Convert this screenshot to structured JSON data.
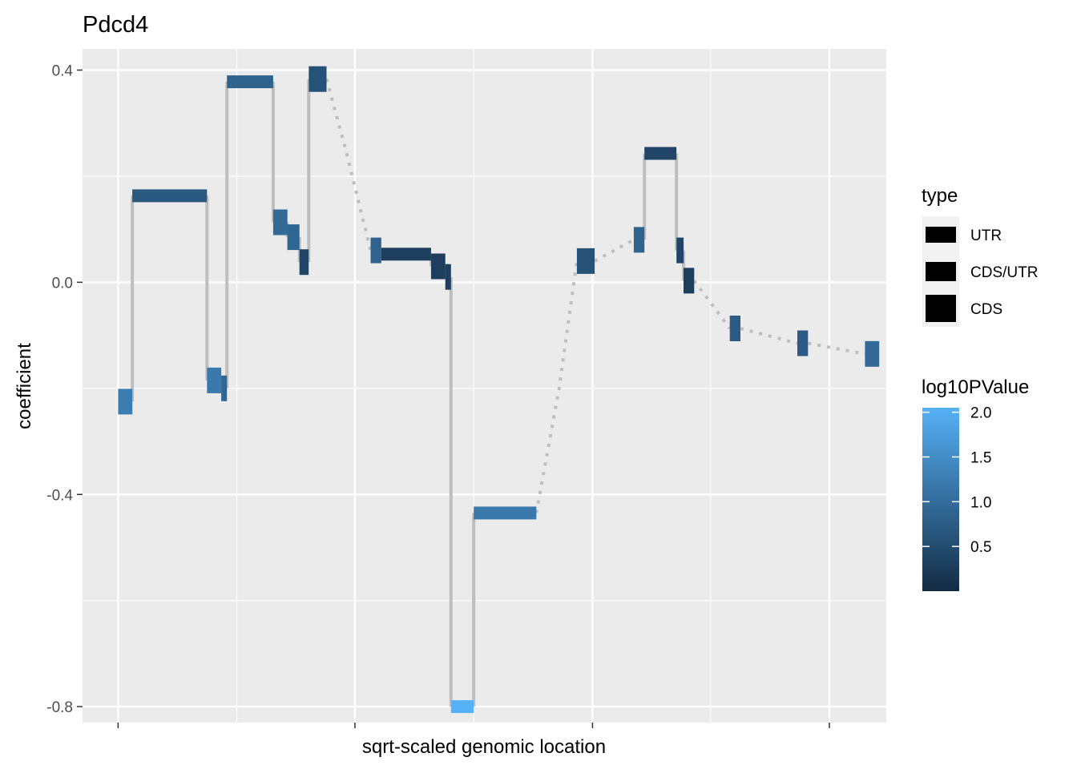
{
  "chart_data": {
    "type": "segment",
    "title": "Pdcd4",
    "xlabel": "sqrt-scaled genomic location",
    "ylabel": "coefficient",
    "ylim": [
      -0.83,
      0.44
    ],
    "xlim": [
      -0.5,
      10.8
    ],
    "yticks": [
      {
        "value": 0.4,
        "label": "0.4"
      },
      {
        "value": 0.0,
        "label": "0.0"
      },
      {
        "value": -0.4,
        "label": "-0.4"
      },
      {
        "value": -0.8,
        "label": "-0.8"
      }
    ],
    "xtick_positions": [
      0,
      1.67,
      3.33,
      5,
      6.67,
      8.33,
      10
    ],
    "segments": [
      {
        "x0": 0.0,
        "x1": 0.2,
        "y": -0.225,
        "p": 1.25,
        "type": "CDS"
      },
      {
        "x0": 0.2,
        "x1": 1.25,
        "y": 0.163,
        "p": 0.7,
        "type": "UTR"
      },
      {
        "x0": 1.25,
        "x1": 1.45,
        "y": -0.185,
        "p": 1.2,
        "type": "CDS"
      },
      {
        "x0": 1.45,
        "x1": 1.53,
        "y": -0.2,
        "p": 0.9,
        "type": "CDS"
      },
      {
        "x0": 1.53,
        "x1": 2.18,
        "y": 0.378,
        "p": 0.85,
        "type": "UTR"
      },
      {
        "x0": 2.18,
        "x1": 2.38,
        "y": 0.113,
        "p": 0.95,
        "type": "CDS"
      },
      {
        "x0": 2.38,
        "x1": 2.55,
        "y": 0.085,
        "p": 0.9,
        "type": "CDS"
      },
      {
        "x0": 2.55,
        "x1": 2.68,
        "y": 0.038,
        "p": 0.4,
        "type": "CDS"
      },
      {
        "x0": 2.68,
        "x1": 2.93,
        "y": 0.383,
        "p": 0.6,
        "type": "CDS"
      },
      {
        "x0": 3.55,
        "x1": 3.7,
        "y": 0.06,
        "p": 0.85,
        "type": "CDS"
      },
      {
        "x0": 3.7,
        "x1": 4.4,
        "y": 0.053,
        "p": 0.3,
        "type": "UTR"
      },
      {
        "x0": 4.4,
        "x1": 4.6,
        "y": 0.03,
        "p": 0.3,
        "type": "CDS"
      },
      {
        "x0": 4.6,
        "x1": 4.68,
        "y": 0.01,
        "p": 0.3,
        "type": "CDS"
      },
      {
        "x0": 4.68,
        "x1": 5.0,
        "y": -0.8,
        "p": 2.05,
        "type": "UTR"
      },
      {
        "x0": 5.0,
        "x1": 5.88,
        "y": -0.435,
        "p": 1.2,
        "type": "UTR"
      },
      {
        "x0": 6.45,
        "x1": 6.7,
        "y": 0.04,
        "p": 0.6,
        "type": "CDS"
      },
      {
        "x0": 7.25,
        "x1": 7.4,
        "y": 0.08,
        "p": 0.85,
        "type": "CDS"
      },
      {
        "x0": 7.4,
        "x1": 7.85,
        "y": 0.243,
        "p": 0.4,
        "type": "UTR"
      },
      {
        "x0": 7.85,
        "x1": 7.95,
        "y": 0.06,
        "p": 0.4,
        "type": "CDS"
      },
      {
        "x0": 7.95,
        "x1": 8.1,
        "y": 0.003,
        "p": 0.3,
        "type": "CDS"
      },
      {
        "x0": 8.6,
        "x1": 8.75,
        "y": -0.087,
        "p": 0.75,
        "type": "CDS"
      },
      {
        "x0": 9.55,
        "x1": 9.7,
        "y": -0.115,
        "p": 0.75,
        "type": "CDS"
      },
      {
        "x0": 10.5,
        "x1": 10.7,
        "y": -0.135,
        "p": 0.95,
        "type": "CDS"
      }
    ],
    "dotted_connectors": [
      [
        {
          "x": 2.93,
          "y": 0.383
        },
        {
          "x": 3.2,
          "y": 0.25
        },
        {
          "x": 3.55,
          "y": 0.06
        }
      ],
      [
        {
          "x": 5.88,
          "x_": 0,
          "y": -0.435
        },
        {
          "x": 6.2,
          "y": -0.2
        },
        {
          "x": 6.45,
          "y": 0.04
        }
      ],
      [
        {
          "x": 6.7,
          "y": 0.04
        },
        {
          "x": 7.25,
          "y": 0.08
        }
      ],
      [
        {
          "x": 8.1,
          "y": 0.003
        },
        {
          "x": 8.6,
          "y": -0.087
        }
      ],
      [
        {
          "x": 8.75,
          "y": -0.087
        },
        {
          "x": 9.55,
          "y": -0.115
        }
      ],
      [
        {
          "x": 9.7,
          "y": -0.115
        },
        {
          "x": 10.5,
          "y": -0.135
        }
      ]
    ],
    "legend_type": {
      "title": "type",
      "items": [
        "UTR",
        "CDS/UTR",
        "CDS"
      ]
    },
    "legend_color": {
      "title": "log10PValue",
      "low_color": "#132b43",
      "high_color": "#56b1f7",
      "min": 0.0,
      "max": 2.05,
      "ticks": [
        {
          "value": 0.5,
          "label": "0.5"
        },
        {
          "value": 1.0,
          "label": "1.0"
        },
        {
          "value": 1.5,
          "label": "1.5"
        },
        {
          "value": 2.0,
          "label": "2.0"
        }
      ]
    },
    "colors": {
      "panel": "#ebebeb",
      "grid": "#ffffff",
      "connector": "#bebebe"
    }
  }
}
